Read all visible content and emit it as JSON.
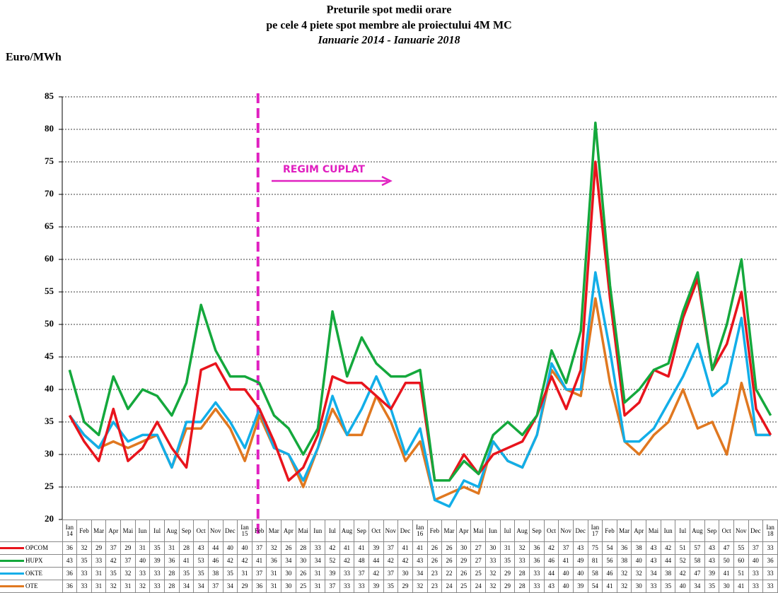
{
  "chart_data": {
    "type": "line",
    "title": [
      "Preturile spot medii orare",
      "pe cele 4 piete spot membre ale proiectului 4M MC"
    ],
    "subtitle": "Ianuarie 2014 - Ianuarie 2018",
    "y_label": "Euro/MWh",
    "annotation": "REGIM CUPLAT",
    "categories": [
      "Ian 14",
      "Feb",
      "Mar",
      "Apr",
      "Mai",
      "Iun",
      "Iul",
      "Aug",
      "Sep",
      "Oct",
      "Nov",
      "Dec",
      "Ian 15",
      "Feb",
      "Mar",
      "Apr",
      "Mai",
      "Iun",
      "Iul",
      "Aug",
      "Sep",
      "Oct",
      "Nov",
      "Dec",
      "Ian 16",
      "Feb",
      "Mar",
      "Apr",
      "Mai",
      "Iun",
      "Iul",
      "Aug",
      "Sep",
      "Oct",
      "Nov",
      "Dec",
      "Ian 17",
      "Feb",
      "Mar",
      "Apr",
      "Mai",
      "Iun",
      "Iul",
      "Aug",
      "Sep",
      "Oct",
      "Nov",
      "Dec",
      "Ian 18"
    ],
    "series": [
      {
        "name": "OPCOM",
        "color": "#e8141c",
        "values": [
          36,
          32,
          29,
          37,
          29,
          31,
          35,
          31,
          28,
          43,
          44,
          40,
          40,
          37,
          32,
          26,
          28,
          33,
          42,
          41,
          41,
          39,
          37,
          41,
          41,
          26,
          26,
          30,
          27,
          30,
          31,
          32,
          36,
          42,
          37,
          43,
          75,
          54,
          36,
          38,
          43,
          42,
          51,
          57,
          43,
          47,
          55,
          37,
          33
        ]
      },
      {
        "name": "HUPX",
        "color": "#14a83c",
        "values": [
          43,
          35,
          33,
          42,
          37,
          40,
          39,
          36,
          41,
          53,
          46,
          42,
          42,
          41,
          36,
          34,
          30,
          34,
          52,
          42,
          48,
          44,
          42,
          42,
          43,
          26,
          26,
          29,
          27,
          33,
          35,
          33,
          36,
          46,
          41,
          49,
          81,
          56,
          38,
          40,
          43,
          44,
          52,
          58,
          43,
          50,
          60,
          40,
          36
        ]
      },
      {
        "name": "OKTE",
        "color": "#12aee8",
        "values": [
          36,
          33,
          31,
          35,
          32,
          33,
          33,
          28,
          35,
          35,
          38,
          35,
          31,
          37,
          31,
          30,
          26,
          31,
          39,
          33,
          37,
          42,
          37,
          30,
          34,
          23,
          22,
          26,
          25,
          32,
          29,
          28,
          33,
          44,
          40,
          40,
          58,
          46,
          32,
          32,
          34,
          38,
          42,
          47,
          39,
          41,
          51,
          33,
          33
        ]
      },
      {
        "name": "OTE",
        "color": "#e07820",
        "values": [
          36,
          33,
          31,
          32,
          31,
          32,
          33,
          28,
          34,
          34,
          37,
          34,
          29,
          36,
          31,
          30,
          25,
          31,
          37,
          33,
          33,
          39,
          35,
          29,
          32,
          23,
          24,
          25,
          24,
          32,
          29,
          28,
          33,
          43,
          40,
          39,
          54,
          41,
          32,
          30,
          33,
          35,
          40,
          34,
          35,
          30,
          41,
          33,
          33
        ]
      }
    ],
    "ylim": [
      20,
      85
    ],
    "yticks": [
      20,
      25,
      30,
      35,
      40,
      45,
      50,
      55,
      60,
      65,
      70,
      75,
      80,
      85
    ],
    "grid": true
  }
}
